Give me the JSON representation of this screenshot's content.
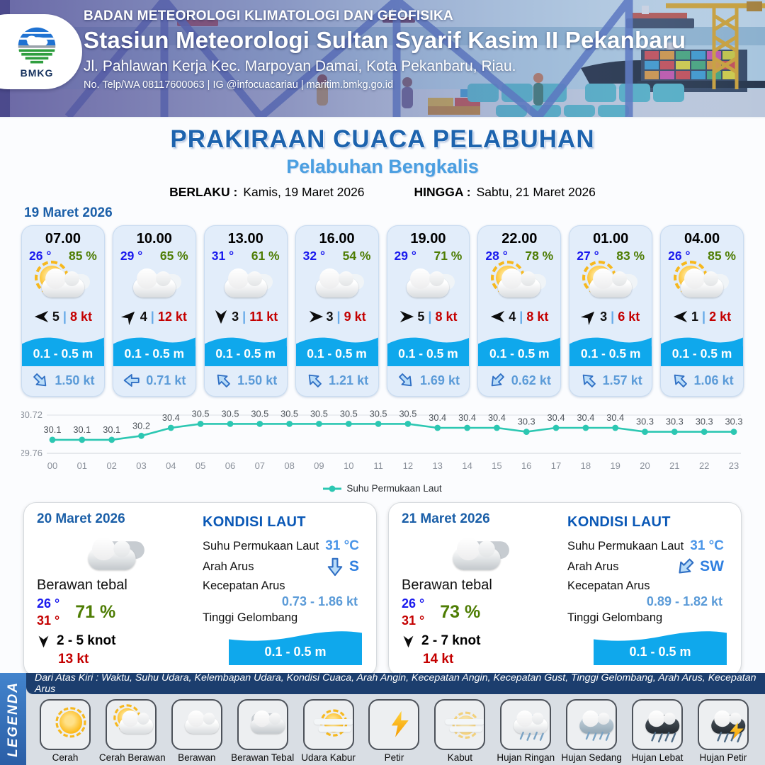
{
  "header": {
    "logo": "BMKG",
    "line1": "BADAN METEOROLOGI KLIMATOLOGI DAN GEOFISIKA",
    "line2": "Stasiun Meteorologi Sultan Syarif Kasim II Pekanbaru",
    "line3": "Jl. Pahlawan Kerja Kec. Marpoyan Damai, Kota Pekanbaru, Riau.",
    "line4": "No. Telp/WA 08117600063 | IG @infocuacariau | maritim.bmkg.go.id"
  },
  "title": {
    "main": "PRAKIRAAN CUACA PELABUHAN",
    "sub": "Pelabuhan Bengkalis",
    "berlaku_label": "BERLAKU :",
    "berlaku_value": "Kamis, 19 Maret 2026",
    "hingga_label": "HINGGA :",
    "hingga_value": "Sabtu, 21 Maret 2026"
  },
  "ui": {
    "separator": "|"
  },
  "day1": {
    "date": "19 Maret 2026",
    "cards": [
      {
        "time": "07.00",
        "temp": "26 °",
        "rh": "85 %",
        "icon": "cerah-berawan",
        "wind_dir": "W",
        "wind": "5",
        "gust": "8 kt",
        "wave": "0.1 - 0.5 m",
        "cur_dir": "SE",
        "cur": "1.50 kt"
      },
      {
        "time": "10.00",
        "temp": "29 °",
        "rh": "65 %",
        "icon": "berawan",
        "wind_dir": "NE",
        "wind": "4",
        "gust": "12 kt",
        "wave": "0.1 - 0.5 m",
        "cur_dir": "W",
        "cur": "0.71 kt"
      },
      {
        "time": "13.00",
        "temp": "31 °",
        "rh": "61 %",
        "icon": "berawan",
        "wind_dir": "S",
        "wind": "3",
        "gust": "11 kt",
        "wave": "0.1 - 0.5 m",
        "cur_dir": "NW",
        "cur": "1.50 kt"
      },
      {
        "time": "16.00",
        "temp": "32 °",
        "rh": "54 %",
        "icon": "berawan",
        "wind_dir": "E",
        "wind": "3",
        "gust": "9 kt",
        "wave": "0.1 - 0.5 m",
        "cur_dir": "NW",
        "cur": "1.21 kt"
      },
      {
        "time": "19.00",
        "temp": "29 °",
        "rh": "71 %",
        "icon": "berawan",
        "wind_dir": "E",
        "wind": "5",
        "gust": "8 kt",
        "wave": "0.1 - 0.5 m",
        "cur_dir": "SE",
        "cur": "1.69 kt"
      },
      {
        "time": "22.00",
        "temp": "28 °",
        "rh": "78 %",
        "icon": "cerah-berawan",
        "wind_dir": "W",
        "wind": "4",
        "gust": "8 kt",
        "wave": "0.1 - 0.5 m",
        "cur_dir": "SW",
        "cur": "0.62 kt"
      },
      {
        "time": "01.00",
        "temp": "27 °",
        "rh": "83 %",
        "icon": "cerah-berawan",
        "wind_dir": "NE",
        "wind": "3",
        "gust": "6 kt",
        "wave": "0.1 - 0.5 m",
        "cur_dir": "NW",
        "cur": "1.57 kt"
      },
      {
        "time": "04.00",
        "temp": "26 °",
        "rh": "85 %",
        "icon": "cerah-berawan",
        "wind_dir": "W",
        "wind": "1",
        "gust": "2 kt",
        "wave": "0.1 - 0.5 m",
        "cur_dir": "NW",
        "cur": "1.06 kt"
      }
    ]
  },
  "chart_data": {
    "type": "line",
    "series_label": "Suhu Permukaan Laut",
    "x": [
      "00",
      "01",
      "02",
      "03",
      "04",
      "05",
      "06",
      "07",
      "08",
      "09",
      "10",
      "11",
      "12",
      "13",
      "14",
      "15",
      "16",
      "17",
      "18",
      "19",
      "20",
      "21",
      "22",
      "23"
    ],
    "values": [
      30.1,
      30.1,
      30.1,
      30.2,
      30.4,
      30.5,
      30.5,
      30.5,
      30.5,
      30.5,
      30.5,
      30.5,
      30.5,
      30.4,
      30.4,
      30.4,
      30.3,
      30.4,
      30.4,
      30.4,
      30.3,
      30.3,
      30.3,
      30.3
    ],
    "ylim": [
      29.76,
      30.72
    ],
    "line_color": "#2cc7b2",
    "grid": true,
    "legend_position": "bottom"
  },
  "days": [
    {
      "date": "20 Maret 2026",
      "icon": "berawan-tebal",
      "condition": "Berawan tebal",
      "tmin": "26 °",
      "tmax": "31 °",
      "rh": "71 %",
      "wind_dir": "S",
      "wind": "2  - 5 knot",
      "gust": "13 kt",
      "sea": {
        "title": "KONDISI LAUT",
        "sst_label": "Suhu Permukaan Laut",
        "sst": "31 °C",
        "arah_label": "Arah Arus",
        "arah_dir": "S",
        "arah": "S",
        "kec_label": "Kecepatan Arus",
        "kec": "0.73  - 1.86 kt",
        "tg_label": "Tinggi Gelombang",
        "wave": "0.1 - 0.5 m"
      }
    },
    {
      "date": "21 Maret 2026",
      "icon": "berawan-tebal",
      "condition": "Berawan tebal",
      "tmin": "26 °",
      "tmax": "31 °",
      "rh": "73 %",
      "wind_dir": "S",
      "wind": "2  - 7 knot",
      "gust": "14 kt",
      "sea": {
        "title": "KONDISI LAUT",
        "sst_label": "Suhu Permukaan Laut",
        "sst": "31 °C",
        "arah_label": "Arah Arus",
        "arah_dir": "SW",
        "arah": "SW",
        "kec_label": "Kecepatan Arus",
        "kec": "0.89  - 1.82 kt",
        "tg_label": "Tinggi Gelombang",
        "wave": "0.1 - 0.5 m"
      }
    }
  ],
  "legend": {
    "tab": "LEGENDA",
    "strip": "Dari Atas Kiri : Waktu, Suhu Udara, Kelembapan Udara, Kondisi Cuaca, Arah Angin, Kecepatan Angin, Kecepatan Gust, Tinggi Gelombang, Arah Arus, Kecepatan Arus",
    "items": [
      {
        "label": "Cerah",
        "icon": "cerah"
      },
      {
        "label": "Cerah Berawan",
        "icon": "cerah-berawan"
      },
      {
        "label": "Berawan",
        "icon": "berawan"
      },
      {
        "label": "Berawan Tebal",
        "icon": "berawan-tebal"
      },
      {
        "label": "Udara Kabur",
        "icon": "udara-kabur"
      },
      {
        "label": "Petir",
        "icon": "petir"
      },
      {
        "label": "Kabut",
        "icon": "kabut"
      },
      {
        "label": "Hujan Ringan",
        "icon": "hujan-ringan"
      },
      {
        "label": "Hujan Sedang",
        "icon": "hujan-sedang"
      },
      {
        "label": "Hujan Lebat",
        "icon": "hujan-lebat"
      },
      {
        "label": "Hujan Petir",
        "icon": "hujan-petir"
      }
    ]
  },
  "colors": {
    "title_blue": "#1d63ae",
    "sub_blue": "#4b9fe1",
    "temp_blue": "#1a1aee",
    "humidity_green": "#4e7d04",
    "gust_red": "#c40000",
    "wave_band": "#0fa8ec",
    "current_blue": "#5b9bd8",
    "chart_line": "#2cc7b2",
    "legend_strip": "#1c3e6e"
  }
}
